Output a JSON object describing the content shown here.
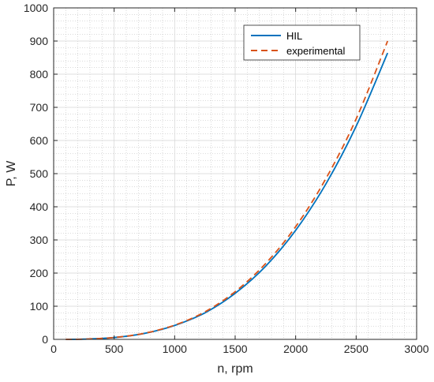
{
  "chart_data": {
    "type": "line",
    "xlabel": "n, rpm",
    "ylabel": "P, W",
    "xlim": [
      0,
      3000
    ],
    "ylim": [
      0,
      1000
    ],
    "xticks": [
      0,
      500,
      1000,
      1500,
      2000,
      2500,
      3000
    ],
    "yticks": [
      0,
      100,
      200,
      300,
      400,
      500,
      600,
      700,
      800,
      900,
      1000
    ],
    "grid": true,
    "minor_grid": true,
    "legend_position": "top-right",
    "series": [
      {
        "name": "HIL",
        "style": "solid",
        "color": "#0072BD",
        "x": [
          100,
          250,
          500,
          750,
          1000,
          1250,
          1500,
          1750,
          2000,
          2250,
          2500,
          2760
        ],
        "y": [
          0.1,
          0.7,
          5.5,
          18,
          42,
          80,
          139,
          220,
          329,
          469,
          643,
          864
        ]
      },
      {
        "name": "experimental",
        "style": "dashed",
        "color": "#D95319",
        "x": [
          100,
          250,
          500,
          750,
          1000,
          1250,
          1500,
          1750,
          2000,
          2250,
          2500,
          2760
        ],
        "y": [
          0.1,
          0.7,
          5.6,
          18.5,
          43,
          83,
          144,
          228,
          340,
          485,
          665,
          900
        ]
      }
    ]
  }
}
